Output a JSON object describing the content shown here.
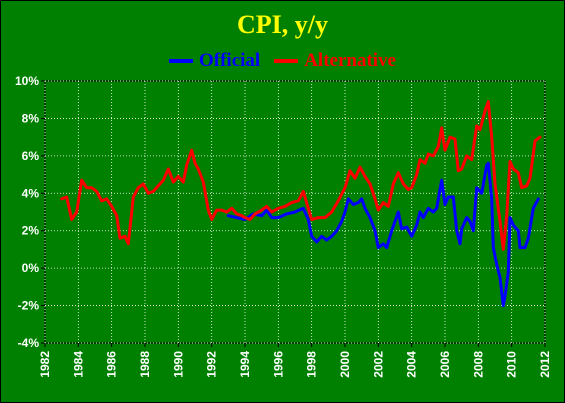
{
  "chart_data": {
    "type": "line",
    "title": "CPI, y/y",
    "xlabel": "",
    "ylabel": "",
    "xlim": [
      1982,
      2012
    ],
    "ylim": [
      -4,
      10
    ],
    "x_ticks": [
      "1982",
      "1984",
      "1986",
      "1988",
      "1990",
      "1992",
      "1994",
      "1996",
      "1998",
      "2000",
      "2002",
      "2004",
      "2006",
      "2008",
      "2010",
      "2012"
    ],
    "y_ticks": [
      "-4%",
      "-2%",
      "0%",
      "2%",
      "4%",
      "6%",
      "8%",
      "10%"
    ],
    "grid": true,
    "legend_position": "top-center",
    "colors": {
      "background": "#008000",
      "title": "#FFFF00",
      "grid": "#FFFFFF"
    },
    "series": [
      {
        "name": "Official",
        "color": "#0000FF",
        "points": [
          [
            1993.0,
            2.8
          ],
          [
            1993.5,
            2.7
          ],
          [
            1994.0,
            2.6
          ],
          [
            1994.5,
            2.9
          ],
          [
            1995.0,
            2.8
          ],
          [
            1995.3,
            3.1
          ],
          [
            1995.6,
            2.7
          ],
          [
            1996.0,
            2.7
          ],
          [
            1996.5,
            2.9
          ],
          [
            1997.0,
            3.0
          ],
          [
            1997.5,
            3.2
          ],
          [
            1997.8,
            2.6
          ],
          [
            1998.0,
            1.7
          ],
          [
            1998.3,
            1.4
          ],
          [
            1998.6,
            1.7
          ],
          [
            1998.9,
            1.5
          ],
          [
            1999.2,
            1.7
          ],
          [
            1999.5,
            2.0
          ],
          [
            1999.8,
            2.5
          ],
          [
            2000.0,
            3.0
          ],
          [
            2000.2,
            3.7
          ],
          [
            2000.5,
            3.4
          ],
          [
            2000.8,
            3.5
          ],
          [
            2001.0,
            3.7
          ],
          [
            2001.2,
            3.2
          ],
          [
            2001.5,
            2.7
          ],
          [
            2001.8,
            2.0
          ],
          [
            2002.0,
            1.1
          ],
          [
            2002.3,
            1.3
          ],
          [
            2002.5,
            1.1
          ],
          [
            2002.8,
            2.0
          ],
          [
            2003.0,
            2.5
          ],
          [
            2003.2,
            3.0
          ],
          [
            2003.4,
            2.1
          ],
          [
            2003.7,
            2.2
          ],
          [
            2004.0,
            1.7
          ],
          [
            2004.3,
            2.3
          ],
          [
            2004.5,
            3.0
          ],
          [
            2004.7,
            2.7
          ],
          [
            2005.0,
            3.2
          ],
          [
            2005.3,
            3.0
          ],
          [
            2005.5,
            3.2
          ],
          [
            2005.8,
            4.7
          ],
          [
            2006.0,
            3.4
          ],
          [
            2006.2,
            3.8
          ],
          [
            2006.5,
            3.8
          ],
          [
            2006.7,
            2.0
          ],
          [
            2006.9,
            1.3
          ],
          [
            2007.0,
            2.1
          ],
          [
            2007.3,
            2.7
          ],
          [
            2007.5,
            2.5
          ],
          [
            2007.7,
            2.0
          ],
          [
            2007.9,
            4.3
          ],
          [
            2008.2,
            4.0
          ],
          [
            2008.5,
            5.5
          ],
          [
            2008.6,
            5.6
          ],
          [
            2008.8,
            3.7
          ],
          [
            2008.9,
            1.1
          ],
          [
            2009.1,
            0.2
          ],
          [
            2009.3,
            -0.5
          ],
          [
            2009.5,
            -2.0
          ],
          [
            2009.6,
            -1.5
          ],
          [
            2009.8,
            -0.2
          ],
          [
            2009.9,
            2.7
          ],
          [
            2010.1,
            2.3
          ],
          [
            2010.4,
            2.0
          ],
          [
            2010.5,
            1.1
          ],
          [
            2010.8,
            1.1
          ],
          [
            2011.0,
            1.6
          ],
          [
            2011.3,
            3.2
          ],
          [
            2011.6,
            3.7
          ]
        ]
      },
      {
        "name": "Alternative",
        "color": "#FF0000",
        "points": [
          [
            1983.0,
            3.7
          ],
          [
            1983.3,
            3.8
          ],
          [
            1983.6,
            2.6
          ],
          [
            1983.9,
            3.0
          ],
          [
            1984.2,
            4.7
          ],
          [
            1984.5,
            4.3
          ],
          [
            1984.8,
            4.3
          ],
          [
            1985.1,
            4.1
          ],
          [
            1985.4,
            3.6
          ],
          [
            1985.7,
            3.7
          ],
          [
            1986.0,
            3.3
          ],
          [
            1986.3,
            2.8
          ],
          [
            1986.5,
            1.6
          ],
          [
            1986.8,
            1.7
          ],
          [
            1987.0,
            1.3
          ],
          [
            1987.3,
            3.8
          ],
          [
            1987.6,
            4.3
          ],
          [
            1987.9,
            4.5
          ],
          [
            1988.2,
            4.0
          ],
          [
            1988.5,
            4.1
          ],
          [
            1988.8,
            4.4
          ],
          [
            1989.1,
            4.7
          ],
          [
            1989.4,
            5.3
          ],
          [
            1989.7,
            4.6
          ],
          [
            1990.0,
            4.9
          ],
          [
            1990.3,
            4.6
          ],
          [
            1990.5,
            5.5
          ],
          [
            1990.8,
            6.3
          ],
          [
            1991.0,
            5.6
          ],
          [
            1991.2,
            5.3
          ],
          [
            1991.5,
            4.6
          ],
          [
            1991.8,
            3.1
          ],
          [
            1992.0,
            2.6
          ],
          [
            1992.3,
            3.1
          ],
          [
            1992.6,
            3.1
          ],
          [
            1992.9,
            3.0
          ],
          [
            1993.2,
            3.2
          ],
          [
            1993.5,
            2.9
          ],
          [
            1993.8,
            2.8
          ],
          [
            1994.0,
            2.7
          ],
          [
            1994.3,
            2.6
          ],
          [
            1994.6,
            2.9
          ],
          [
            1995.0,
            3.1
          ],
          [
            1995.3,
            3.3
          ],
          [
            1995.6,
            3.0
          ],
          [
            1996.0,
            3.2
          ],
          [
            1996.4,
            3.3
          ],
          [
            1996.8,
            3.5
          ],
          [
            1997.2,
            3.6
          ],
          [
            1997.5,
            4.1
          ],
          [
            1997.8,
            3.2
          ],
          [
            1998.0,
            2.6
          ],
          [
            1998.4,
            2.7
          ],
          [
            1998.8,
            2.7
          ],
          [
            1999.2,
            3.0
          ],
          [
            1999.6,
            3.6
          ],
          [
            2000.0,
            4.3
          ],
          [
            2000.3,
            5.2
          ],
          [
            2000.6,
            4.8
          ],
          [
            2000.9,
            5.4
          ],
          [
            2001.2,
            4.9
          ],
          [
            2001.5,
            4.5
          ],
          [
            2001.8,
            3.7
          ],
          [
            2002.0,
            3.1
          ],
          [
            2002.3,
            3.5
          ],
          [
            2002.6,
            3.3
          ],
          [
            2002.9,
            4.5
          ],
          [
            2003.2,
            5.1
          ],
          [
            2003.5,
            4.5
          ],
          [
            2003.8,
            4.2
          ],
          [
            2004.0,
            4.3
          ],
          [
            2004.3,
            5.0
          ],
          [
            2004.5,
            5.8
          ],
          [
            2004.8,
            5.6
          ],
          [
            2005.0,
            6.1
          ],
          [
            2005.3,
            6.0
          ],
          [
            2005.6,
            6.5
          ],
          [
            2005.8,
            7.5
          ],
          [
            2006.0,
            6.3
          ],
          [
            2006.3,
            7.0
          ],
          [
            2006.6,
            6.9
          ],
          [
            2006.8,
            5.2
          ],
          [
            2007.0,
            5.3
          ],
          [
            2007.3,
            6.0
          ],
          [
            2007.6,
            5.8
          ],
          [
            2007.9,
            7.6
          ],
          [
            2008.1,
            7.4
          ],
          [
            2008.4,
            8.4
          ],
          [
            2008.6,
            8.9
          ],
          [
            2008.8,
            7.0
          ],
          [
            2009.0,
            4.5
          ],
          [
            2009.3,
            2.5
          ],
          [
            2009.5,
            1.0
          ],
          [
            2009.7,
            2.8
          ],
          [
            2009.9,
            5.7
          ],
          [
            2010.1,
            5.3
          ],
          [
            2010.4,
            5.1
          ],
          [
            2010.6,
            4.3
          ],
          [
            2010.9,
            4.4
          ],
          [
            2011.1,
            4.8
          ],
          [
            2011.4,
            6.8
          ],
          [
            2011.7,
            7.0
          ]
        ]
      }
    ]
  }
}
